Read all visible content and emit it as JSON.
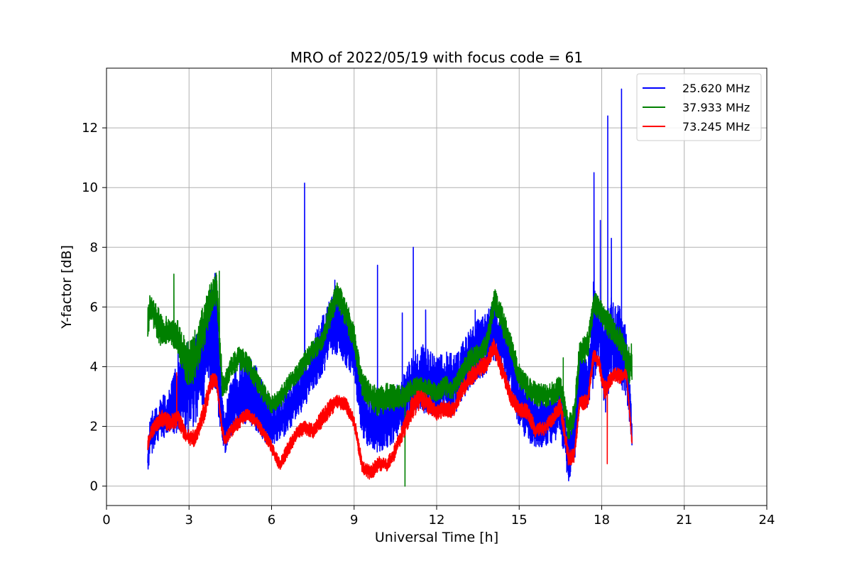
{
  "chart_data": {
    "type": "line",
    "title": "MRO of 2022/05/19 with focus code = 61",
    "xlabel": "Universal Time [h]",
    "ylabel": "Y-factor [dB]",
    "xlim": [
      0,
      24
    ],
    "ylim": [
      -0.65,
      14.0
    ],
    "xticks": [
      0,
      3,
      6,
      9,
      12,
      15,
      18,
      21,
      24
    ],
    "yticks": [
      0,
      2,
      4,
      6,
      8,
      10,
      12
    ],
    "grid": true,
    "legend_position": "top-right",
    "series": [
      {
        "name": "25.620 MHz",
        "color": "#0000ff",
        "x": [
          1.5,
          1.6,
          1.8,
          2.0,
          2.3,
          2.6,
          2.9,
          3.2,
          3.5,
          3.8,
          4.0,
          4.2,
          4.3,
          4.5,
          4.8,
          5.1,
          5.4,
          5.7,
          6.0,
          6.3,
          6.6,
          6.9,
          7.2,
          7.5,
          7.8,
          8.1,
          8.4,
          8.7,
          9.0,
          9.3,
          9.6,
          9.9,
          10.2,
          10.5,
          10.8,
          11.1,
          11.4,
          11.7,
          12.0,
          12.3,
          12.6,
          12.9,
          13.2,
          13.5,
          13.8,
          14.1,
          14.4,
          14.7,
          15.0,
          15.3,
          15.6,
          15.9,
          16.2,
          16.5,
          16.8,
          17.0,
          17.2,
          17.5,
          17.7,
          17.9,
          18.1,
          18.3,
          18.5,
          18.7,
          18.9,
          19.1
        ],
        "low": [
          0.4,
          1.0,
          1.3,
          1.5,
          1.6,
          1.8,
          1.7,
          2.0,
          2.6,
          3.3,
          2.8,
          1.5,
          1.0,
          1.6,
          1.9,
          2.0,
          1.8,
          1.5,
          1.3,
          1.5,
          1.8,
          2.3,
          2.6,
          3.2,
          3.6,
          4.1,
          4.4,
          4.0,
          3.6,
          1.5,
          1.2,
          1.0,
          1.3,
          1.5,
          1.8,
          2.4,
          2.5,
          2.3,
          2.4,
          2.5,
          2.3,
          2.8,
          3.3,
          3.5,
          3.7,
          4.2,
          3.8,
          3.2,
          1.8,
          1.5,
          1.3,
          1.3,
          1.4,
          1.7,
          0.1,
          0.7,
          2.6,
          2.4,
          3.3,
          4.4,
          2.1,
          3.3,
          3.6,
          3.2,
          3.0,
          1.3
        ],
        "high": [
          1.4,
          2.4,
          2.8,
          3.0,
          3.3,
          4.3,
          4.8,
          5.0,
          5.7,
          6.8,
          7.4,
          3.0,
          2.5,
          3.5,
          4.2,
          4.5,
          4.1,
          3.5,
          2.8,
          2.9,
          3.3,
          3.9,
          4.2,
          4.9,
          5.6,
          6.2,
          6.7,
          5.9,
          5.1,
          3.3,
          3.0,
          2.8,
          3.1,
          3.3,
          3.8,
          4.4,
          4.8,
          4.6,
          4.3,
          4.6,
          4.4,
          4.8,
          5.3,
          5.6,
          5.8,
          6.4,
          5.7,
          4.9,
          3.7,
          3.4,
          3.1,
          3.1,
          3.2,
          3.4,
          1.8,
          2.4,
          4.4,
          4.2,
          7.0,
          6.2,
          5.5,
          6.4,
          6.1,
          6.0,
          5.3,
          2.3
        ],
        "spikes": [
          [
            2.6,
            4.7
          ],
          [
            7.2,
            10.15
          ],
          [
            8.3,
            6.9
          ],
          [
            9.85,
            7.4
          ],
          [
            10.75,
            5.8
          ],
          [
            11.15,
            8.0
          ],
          [
            11.6,
            5.9
          ],
          [
            13.4,
            5.9
          ],
          [
            17.72,
            10.5
          ],
          [
            17.95,
            8.9
          ],
          [
            18.22,
            12.4
          ],
          [
            18.35,
            8.3
          ],
          [
            18.72,
            13.3
          ]
        ]
      },
      {
        "name": "37.933 MHz",
        "color": "#008000",
        "x": [
          1.5,
          1.6,
          1.8,
          2.0,
          2.3,
          2.6,
          2.9,
          3.2,
          3.5,
          3.8,
          4.0,
          4.2,
          4.3,
          4.5,
          4.8,
          5.1,
          5.4,
          5.7,
          6.0,
          6.3,
          6.6,
          6.9,
          7.2,
          7.5,
          7.8,
          8.1,
          8.4,
          8.7,
          9.0,
          9.3,
          9.6,
          9.9,
          10.2,
          10.5,
          10.8,
          11.1,
          11.4,
          11.7,
          12.0,
          12.3,
          12.6,
          12.9,
          13.2,
          13.5,
          13.8,
          14.1,
          14.4,
          14.7,
          15.0,
          15.3,
          15.6,
          15.9,
          16.2,
          16.5,
          16.8,
          17.0,
          17.2,
          17.5,
          17.7,
          17.9,
          18.1,
          18.3,
          18.5,
          18.7,
          18.9,
          19.1
        ],
        "low": [
          4.9,
          5.6,
          5.0,
          4.6,
          4.8,
          4.4,
          3.4,
          3.4,
          4.4,
          5.7,
          6.1,
          3.0,
          2.9,
          3.6,
          3.9,
          3.8,
          3.3,
          2.8,
          2.4,
          2.6,
          3.0,
          3.4,
          3.8,
          4.2,
          4.5,
          5.2,
          6.0,
          5.3,
          4.5,
          2.9,
          2.6,
          2.3,
          2.5,
          2.5,
          2.6,
          2.9,
          3.0,
          2.9,
          2.8,
          3.0,
          2.9,
          3.4,
          3.8,
          4.0,
          4.3,
          5.8,
          5.0,
          4.3,
          3.3,
          2.9,
          2.7,
          2.6,
          2.7,
          2.9,
          1.5,
          1.9,
          4.0,
          4.2,
          5.7,
          5.6,
          5.2,
          4.9,
          4.7,
          4.4,
          3.6,
          3.3
        ],
        "high": [
          6.4,
          6.4,
          6.1,
          5.8,
          5.6,
          5.6,
          4.8,
          5.2,
          6.0,
          6.9,
          7.2,
          4.0,
          3.8,
          4.3,
          4.7,
          4.5,
          4.0,
          3.5,
          3.0,
          3.3,
          3.7,
          4.1,
          4.5,
          4.9,
          5.1,
          6.2,
          6.9,
          6.3,
          5.4,
          3.8,
          3.5,
          3.3,
          3.5,
          3.4,
          3.4,
          3.6,
          3.7,
          3.6,
          3.4,
          3.7,
          3.6,
          4.1,
          4.6,
          4.8,
          5.1,
          6.7,
          6.0,
          5.1,
          4.1,
          3.7,
          3.5,
          3.4,
          3.5,
          3.7,
          2.4,
          2.8,
          5.0,
          5.2,
          6.6,
          6.4,
          6.1,
          5.8,
          5.5,
          5.3,
          4.8,
          4.9
        ],
        "spikes": [
          [
            2.45,
            7.1
          ],
          [
            4.1,
            7.2
          ],
          [
            10.85,
            0.0
          ],
          [
            16.6,
            4.3
          ]
        ]
      },
      {
        "name": "73.245 MHz",
        "color": "#ff0000",
        "x": [
          1.5,
          1.6,
          1.8,
          2.0,
          2.3,
          2.6,
          2.9,
          3.2,
          3.5,
          3.8,
          4.0,
          4.2,
          4.3,
          4.5,
          4.8,
          5.1,
          5.4,
          5.7,
          6.0,
          6.3,
          6.6,
          6.9,
          7.2,
          7.5,
          7.8,
          8.1,
          8.4,
          8.7,
          9.0,
          9.3,
          9.6,
          9.9,
          10.2,
          10.5,
          10.8,
          11.1,
          11.4,
          11.7,
          12.0,
          12.3,
          12.6,
          12.9,
          13.2,
          13.5,
          13.8,
          14.1,
          14.4,
          14.7,
          15.0,
          15.3,
          15.6,
          15.9,
          16.2,
          16.5,
          16.8,
          17.0,
          17.2,
          17.5,
          17.7,
          17.9,
          18.1,
          18.3,
          18.5,
          18.7,
          18.9,
          19.1
        ],
        "low": [
          1.1,
          1.5,
          1.8,
          2.0,
          1.8,
          2.0,
          1.4,
          1.3,
          1.9,
          3.2,
          3.3,
          1.7,
          1.3,
          1.6,
          1.9,
          2.2,
          2.0,
          1.6,
          1.1,
          0.5,
          1.0,
          1.5,
          1.7,
          1.6,
          1.9,
          2.3,
          2.6,
          2.5,
          1.9,
          0.4,
          0.2,
          0.5,
          0.5,
          0.9,
          1.6,
          2.2,
          2.6,
          2.4,
          2.2,
          2.3,
          2.3,
          2.9,
          3.3,
          3.6,
          3.8,
          4.4,
          3.5,
          2.7,
          2.3,
          2.2,
          1.6,
          1.7,
          2.0,
          2.4,
          0.6,
          0.8,
          2.5,
          2.6,
          4.1,
          3.9,
          2.9,
          3.3,
          3.5,
          3.4,
          3.6,
          1.3
        ],
        "high": [
          1.6,
          2.0,
          2.3,
          2.6,
          2.4,
          2.6,
          1.9,
          1.9,
          2.7,
          3.8,
          3.8,
          2.1,
          1.7,
          2.1,
          2.4,
          2.6,
          2.4,
          2.0,
          1.5,
          0.9,
          1.5,
          2.0,
          2.2,
          2.1,
          2.5,
          2.9,
          3.1,
          3.0,
          2.4,
          0.9,
          0.7,
          1.0,
          0.9,
          1.5,
          2.2,
          3.0,
          3.3,
          3.1,
          2.7,
          2.9,
          2.8,
          3.5,
          3.9,
          4.2,
          4.4,
          5.0,
          4.1,
          3.3,
          2.8,
          2.8,
          2.1,
          2.2,
          2.5,
          3.0,
          1.2,
          1.3,
          3.0,
          3.1,
          4.6,
          4.4,
          3.5,
          3.8,
          4.0,
          3.9,
          4.0,
          1.6
        ],
        "spikes": [
          [
            2.55,
            3.8
          ],
          [
            18.2,
            0.75
          ]
        ]
      }
    ]
  }
}
